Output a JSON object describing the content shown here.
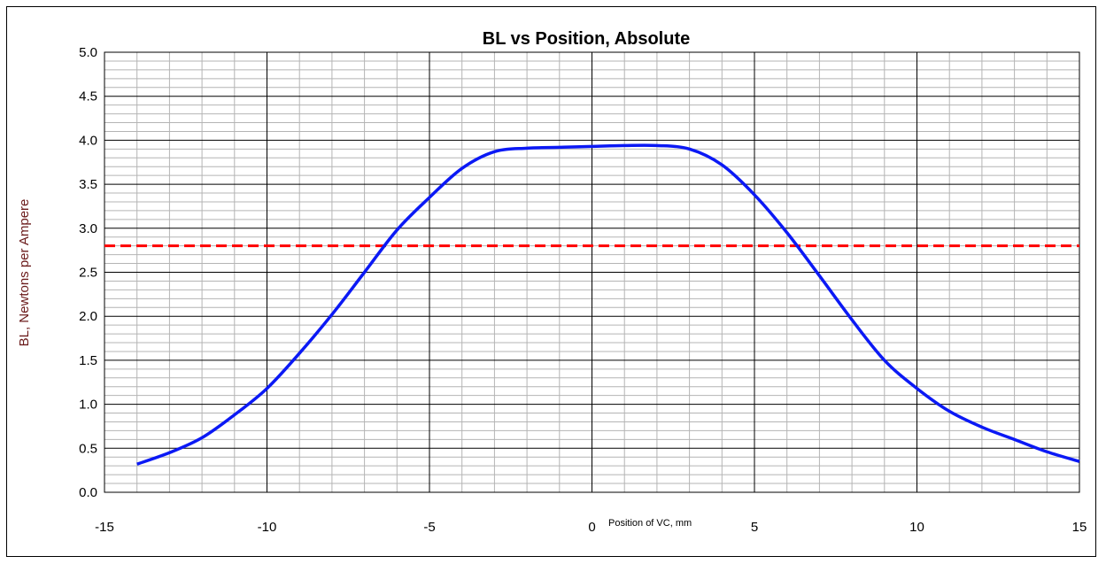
{
  "chart_data": {
    "type": "line",
    "title": "BL vs Position, Absolute",
    "xlabel": "Position of VC, mm",
    "ylabel": "BL, Newtons per Ampere",
    "xlim": [
      -15,
      15
    ],
    "ylim": [
      0,
      5
    ],
    "x_ticks": [
      "-15",
      "-10",
      "-5",
      "0",
      "5",
      "10",
      "15"
    ],
    "y_ticks": [
      "0.0",
      "0.5",
      "1.0",
      "1.5",
      "2.0",
      "2.5",
      "3.0",
      "3.5",
      "4.0",
      "4.5",
      "5.0"
    ],
    "grid": true,
    "legend": "none",
    "colors": {
      "curve": "#0b19f5",
      "reference": "#ff0000",
      "major_grid": "#000000",
      "minor_grid": "#b4b4b4"
    },
    "series": [
      {
        "x": [
          -14,
          -13,
          -12,
          -11,
          -10,
          -9,
          -8,
          -7,
          -6,
          -5,
          -4,
          -3,
          -2,
          -1,
          0,
          1,
          2,
          3,
          4,
          5,
          6,
          7,
          8,
          9,
          10,
          11,
          12,
          13,
          14,
          15
        ],
        "values": [
          0.32,
          0.45,
          0.62,
          0.88,
          1.18,
          1.58,
          2.02,
          2.5,
          2.98,
          3.35,
          3.68,
          3.87,
          3.91,
          3.92,
          3.93,
          3.94,
          3.94,
          3.9,
          3.72,
          3.38,
          2.95,
          2.46,
          1.96,
          1.5,
          1.18,
          0.92,
          0.74,
          0.6,
          0.46,
          0.35
        ]
      }
    ],
    "reference_line": {
      "y": 2.8,
      "style": "dashed"
    }
  }
}
